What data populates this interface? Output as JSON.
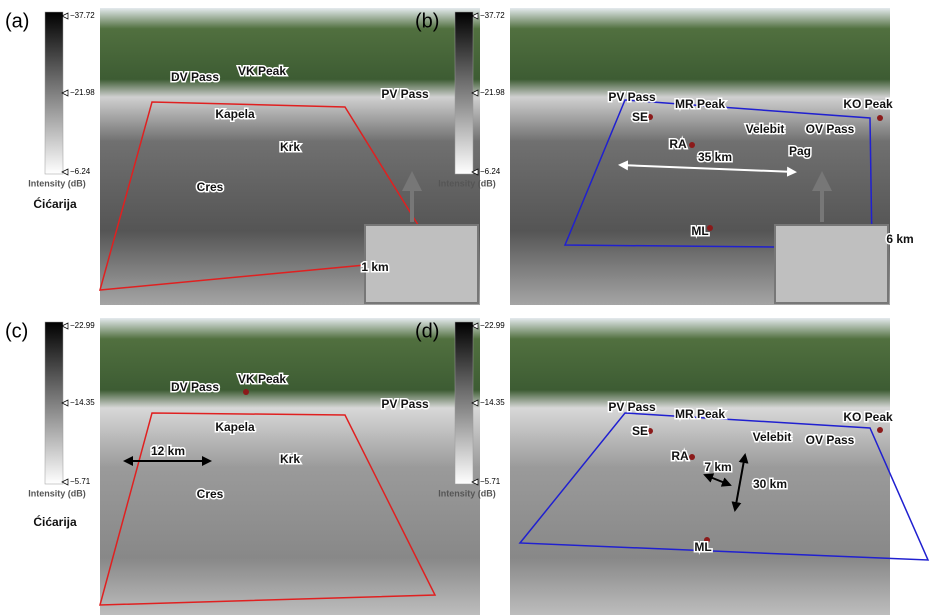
{
  "panels": [
    {
      "label": "(a)",
      "colorbar": {
        "max": "−37.72",
        "mid": "−21.98",
        "min": "−6.24",
        "title": "Intensity (dB)"
      },
      "places": [
        "DV Pass",
        "VK Peak",
        "PV Pass",
        "Kapela",
        "Krk",
        "Cres",
        "Ćićarija"
      ],
      "scale_labels": [
        "1 km"
      ]
    },
    {
      "label": "(b)",
      "colorbar": {
        "max": "−37.72",
        "mid": "−21.98",
        "min": "−6.24",
        "title": "Intensity (dB)"
      },
      "places": [
        "PV Pass",
        "MR Peak",
        "KO Peak",
        "SE",
        "Velebit",
        "OV Pass",
        "RA",
        "Pag",
        "ML"
      ],
      "scale_labels": [
        "35 km",
        "6 km"
      ]
    },
    {
      "label": "(c)",
      "colorbar": {
        "max": "−22.99",
        "mid": "−14.35",
        "min": "−5.71",
        "title": "Intensity (dB)"
      },
      "places": [
        "DV Pass",
        "VK Peak",
        "PV Pass",
        "Kapela",
        "Krk",
        "Cres",
        "Ćićarija"
      ],
      "scale_labels": [
        "12 km"
      ]
    },
    {
      "label": "(d)",
      "colorbar": {
        "max": "−22.99",
        "mid": "−14.35",
        "min": "−5.71",
        "title": "Intensity (dB)"
      },
      "places": [
        "PV Pass",
        "MR Peak",
        "KO Peak",
        "SE",
        "Velebit",
        "OV Pass",
        "RA",
        "ML"
      ],
      "scale_labels": [
        "7 km",
        "30 km"
      ]
    }
  ]
}
